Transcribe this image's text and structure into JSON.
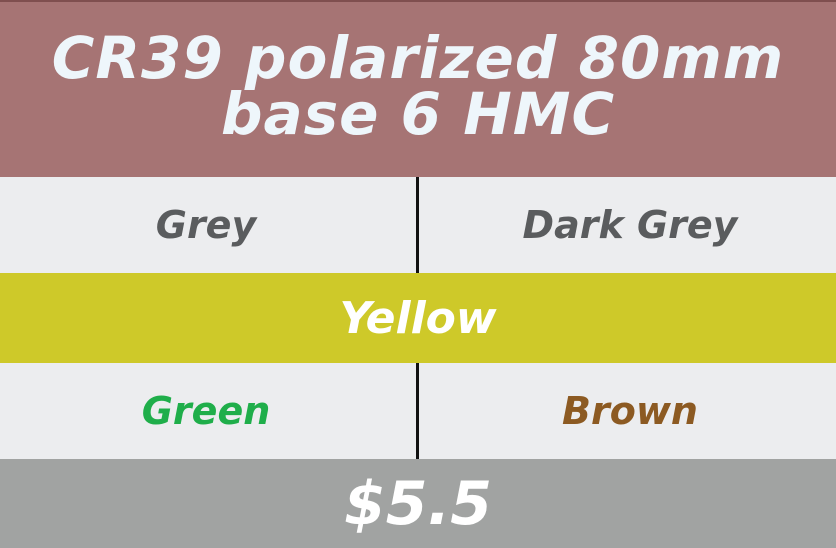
{
  "header": {
    "title_line1": "CR39 polarized 80mm",
    "title_line2": "base 6 HMC"
  },
  "colors_row_1": {
    "left": "Grey",
    "right": "Dark Grey",
    "left_color": "#5a5c5e",
    "right_color": "#5a5c5e"
  },
  "band": {
    "label": "Yellow",
    "background": "#cec929"
  },
  "colors_row_3": {
    "left": "Green",
    "right": "Brown",
    "left_color": "#1fae4a",
    "right_color": "#8c5a22"
  },
  "price": {
    "value": "$5.5"
  },
  "theme": {
    "header_bg": "#a67474",
    "price_bg": "#a1a3a2"
  }
}
